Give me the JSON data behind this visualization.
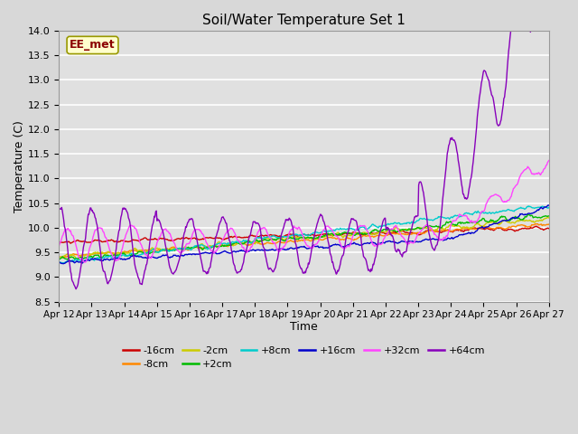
{
  "title": "Soil/Water Temperature Set 1",
  "xlabel": "Time",
  "ylabel": "Temperature (C)",
  "ylim": [
    8.5,
    14.0
  ],
  "xlim": [
    0,
    15
  ],
  "fig_facecolor": "#d8d8d8",
  "ax_facecolor": "#e0e0e0",
  "grid_color": "#c0c0c0",
  "legend_label": "EE_met",
  "series_colors": {
    "-16cm": "#cc0000",
    "-8cm": "#ff8800",
    "-2cm": "#cccc00",
    "+2cm": "#00bb00",
    "+8cm": "#00cccc",
    "+16cm": "#0000cc",
    "+32cm": "#ff44ff",
    "+64cm": "#8800bb"
  },
  "series_order": [
    "-16cm",
    "-8cm",
    "-2cm",
    "+2cm",
    "+8cm",
    "+16cm",
    "+32cm",
    "+64cm"
  ],
  "xtick_labels": [
    "Apr 12",
    "Apr 13",
    "Apr 14",
    "Apr 15",
    "Apr 16",
    "Apr 17",
    "Apr 18",
    "Apr 19",
    "Apr 20",
    "Apr 21",
    "Apr 22",
    "Apr 23",
    "Apr 24",
    "Apr 25",
    "Apr 26",
    "Apr 27"
  ],
  "ytick_labels": [
    "8.5",
    "9.0",
    "9.5",
    "10.0",
    "10.5",
    "11.0",
    "11.5",
    "12.0",
    "12.5",
    "13.0",
    "13.5",
    "14.0"
  ],
  "n_days": 15,
  "pts_per_day": 48,
  "lw": 1.0
}
